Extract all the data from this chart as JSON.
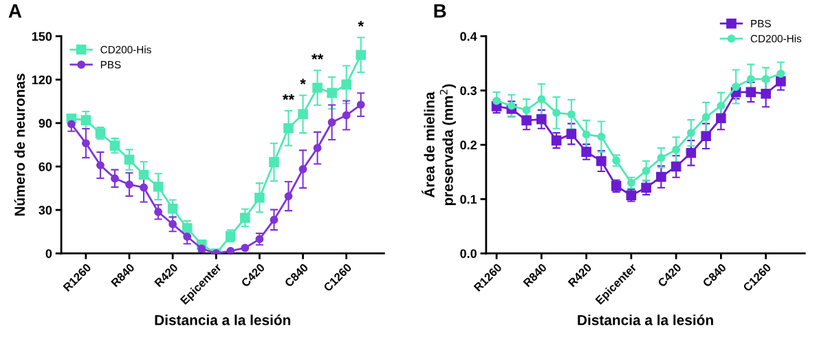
{
  "chart_data": [
    {
      "type": "line",
      "xlabel": "Distancia a la lesión",
      "ylabel": "Número de neuronas",
      "annotations": [
        "A"
      ],
      "categories": [
        null,
        "R1260",
        null,
        null,
        "R840",
        null,
        null,
        "R420",
        null,
        null,
        "Epicenter",
        null,
        null,
        "C420",
        null,
        null,
        "C840",
        null,
        null,
        "C1260",
        null
      ],
      "ylim": [
        0,
        150
      ],
      "yticks": [
        0,
        30,
        60,
        90,
        120,
        150
      ],
      "grid": false,
      "legend": "top left",
      "series": [
        {
          "name": "CD200-His",
          "color": "#4de8b4",
          "marker": "square",
          "values": [
            93.1,
            92,
            83,
            74.4,
            64.7,
            54.3,
            46.1,
            30.9,
            17.4,
            6.1,
            0,
            12.1,
            24.6,
            38.5,
            63,
            86.5,
            96.2,
            114.4,
            110.8,
            116.6,
            137.1
          ],
          "value_labels": [
            null,
            null,
            null,
            null,
            null,
            null,
            null,
            null,
            null,
            null,
            null,
            null,
            null,
            null,
            null,
            "**",
            "*",
            "**",
            null,
            null,
            "*"
          ],
          "errors": [
            3,
            6,
            4,
            5,
            7,
            9,
            9,
            6,
            5,
            2,
            null,
            4,
            6,
            10,
            13,
            12,
            13,
            12,
            11,
            13,
            12
          ]
        },
        {
          "name": "PBS",
          "color": "#8133d6",
          "marker": "circle",
          "values": [
            89.3,
            76.1,
            60.9,
            51.8,
            47.6,
            45.5,
            28.6,
            20.2,
            11.6,
            3.3,
            0,
            1.7,
            3.8,
            9.9,
            23.2,
            39.5,
            58.2,
            72.8,
            90.5,
            95.4,
            102.7
          ],
          "errors": [
            5,
            10,
            9,
            6,
            8,
            10,
            5,
            5,
            5,
            2,
            null,
            null,
            null,
            4,
            7,
            10,
            13,
            11,
            12,
            10,
            8
          ]
        }
      ]
    },
    {
      "type": "line",
      "xlabel": "Distancia a la lesión",
      "ylabel": "Área de mielina\npreservada (mm$^{2}$)",
      "annotations": [
        "B"
      ],
      "categories": [
        "R1260",
        null,
        null,
        "R840",
        null,
        null,
        "R420",
        null,
        null,
        "Epicenter",
        null,
        null,
        "C420",
        null,
        null,
        "C840",
        null,
        null,
        "C1260",
        null
      ],
      "ylim": [
        0,
        0.4
      ],
      "yticks": [
        {
          "value": 0,
          "label": "0.0"
        },
        0.1,
        0.2,
        0.3,
        0.4
      ],
      "grid": false,
      "legend": "top right",
      "series": [
        {
          "name": "PBS",
          "color": "#6a1bd0",
          "marker": "square",
          "values": [
            0.271,
            0.266,
            0.245,
            0.247,
            0.208,
            0.22,
            0.187,
            0.17,
            0.124,
            0.107,
            0.121,
            0.141,
            0.16,
            0.185,
            0.216,
            0.249,
            0.297,
            0.297,
            0.294,
            0.317
          ],
          "errors": [
            0.012,
            0.014,
            0.017,
            0.017,
            0.014,
            0.019,
            0.014,
            0.019,
            0.011,
            0.011,
            0.013,
            0.02,
            0.02,
            0.023,
            0.023,
            0.021,
            0.012,
            0.018,
            0.024,
            0.016
          ]
        },
        {
          "name": "CD200-His",
          "color": "#4de8b4",
          "marker": "circle",
          "values": [
            0.281,
            0.272,
            0.264,
            0.284,
            0.259,
            0.256,
            0.219,
            0.215,
            0.171,
            0.13,
            0.152,
            0.176,
            0.191,
            0.222,
            0.251,
            0.272,
            0.307,
            0.321,
            0.321,
            0.331
          ],
          "errors": [
            0.016,
            0.02,
            0.02,
            0.028,
            0.029,
            0.027,
            0.026,
            0.028,
            0.01,
            0.01,
            0.018,
            0.018,
            0.023,
            0.024,
            0.027,
            0.024,
            0.031,
            0.027,
            0.021,
            0.021
          ]
        }
      ]
    }
  ]
}
